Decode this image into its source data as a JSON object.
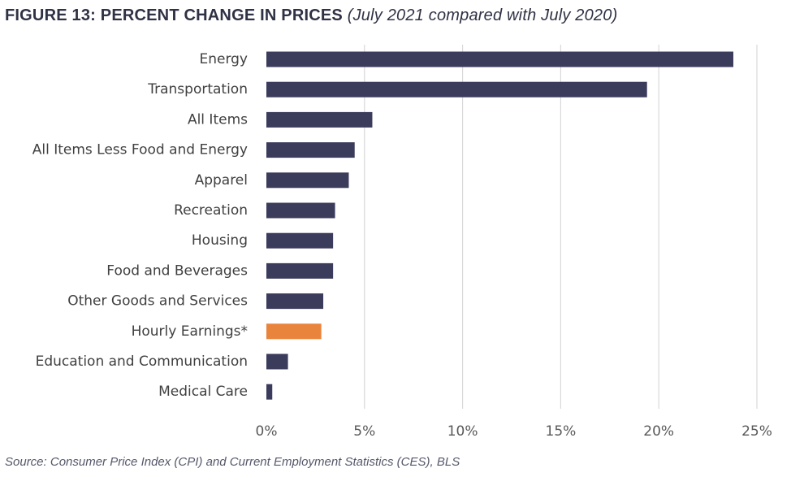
{
  "figure": {
    "title_main": "FIGURE 13: PERCENT CHANGE IN PRICES",
    "title_sub": "(July 2021 compared with July 2020)",
    "source": "Source: Consumer Price Index (CPI) and Current Employment Statistics (CES), BLS"
  },
  "chart_data": {
    "type": "bar",
    "orientation": "horizontal",
    "categories": [
      "Energy",
      "Transportation",
      "All Items",
      "All Items Less Food and Energy",
      "Apparel",
      "Recreation",
      "Housing",
      "Food and Beverages",
      "Other Goods and Services",
      "Hourly Earnings*",
      "Education and Communication",
      "Medical Care"
    ],
    "values": [
      23.8,
      19.4,
      5.4,
      4.5,
      4.2,
      3.5,
      3.4,
      3.4,
      2.9,
      2.8,
      1.1,
      0.3
    ],
    "xlim": [
      0,
      25
    ],
    "xticks": [
      "0%",
      "5%",
      "10%",
      "15%",
      "20%",
      "25%"
    ],
    "grid": "vertical",
    "colors": {
      "default": "#3b3b5c",
      "highlight": "#e9843c",
      "highlight_category": "Hourly Earnings*"
    }
  }
}
